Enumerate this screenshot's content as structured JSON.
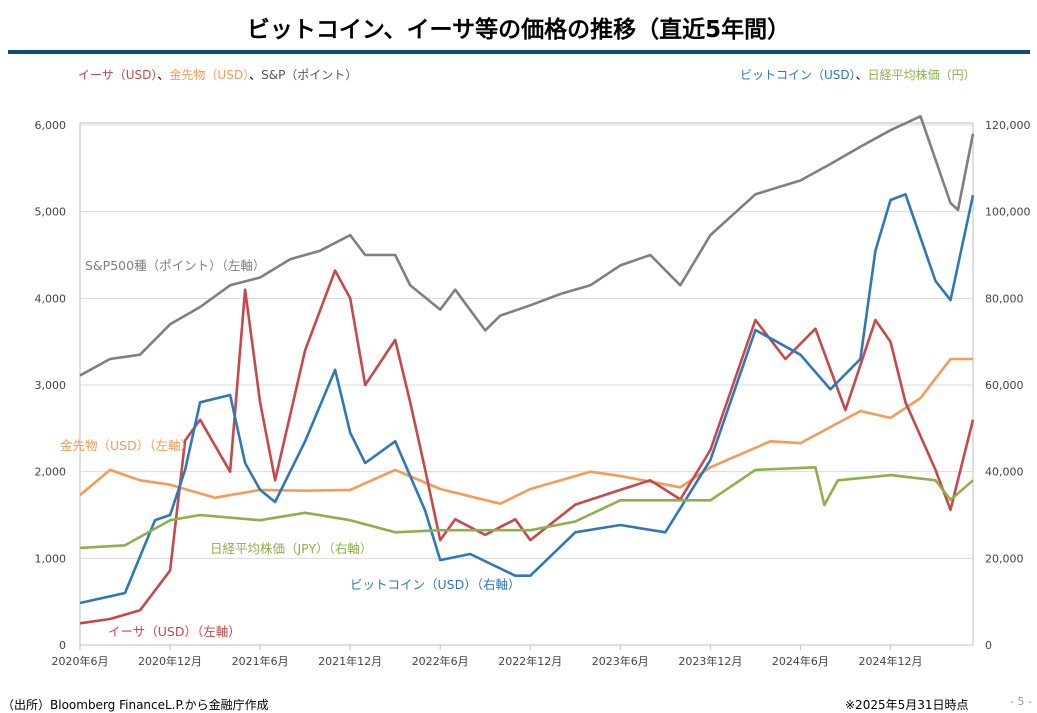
{
  "title": "ビットコイン、イーサ等の価格の推移（直近5年間）",
  "legend_left": [
    {
      "text": "イーサ（USD）",
      "color": "#c8474b"
    },
    {
      "text": "、",
      "color": "#000000"
    },
    {
      "text": "金先物（USD）",
      "color": "#f79a57"
    },
    {
      "text": "、",
      "color": "#000000"
    },
    {
      "text": "S&P（ポイント）",
      "color": "#555555"
    }
  ],
  "legend_right": [
    {
      "text": "ビットコイン（USD）",
      "color": "#2e78b8"
    },
    {
      "text": "、",
      "color": "#000000"
    },
    {
      "text": "日経平均株価（円）",
      "color": "#8db04a"
    }
  ],
  "source": "（出所）Bloomberg FinanceL.P.から金融庁作成",
  "as_of": "※2025年5月31日時点",
  "page": "- 5 -",
  "chart_data": {
    "type": "line",
    "x_unit": "months since 2020-06",
    "xlim": [
      0,
      59.5
    ],
    "x_ticks": [
      {
        "m": 0,
        "label": "2020年6月"
      },
      {
        "m": 6,
        "label": "2020年12月"
      },
      {
        "m": 12,
        "label": "2021年6月"
      },
      {
        "m": 18,
        "label": "2021年12月"
      },
      {
        "m": 24,
        "label": "2022年6月"
      },
      {
        "m": 30,
        "label": "2022年12月"
      },
      {
        "m": 36,
        "label": "2023年6月"
      },
      {
        "m": 42,
        "label": "2023年12月"
      },
      {
        "m": 48,
        "label": "2024年6月"
      },
      {
        "m": 54,
        "label": "2024年12月"
      }
    ],
    "ylim_left": [
      0,
      6000
    ],
    "ylim_right": [
      0,
      120000
    ],
    "y_ticks_left": [
      "0",
      "1,000",
      "2,000",
      "3,000",
      "4,000",
      "5,000",
      "6,000"
    ],
    "y_ticks_right": [
      "0",
      "20,000",
      "40,000",
      "60,000",
      "80,000",
      "100,000",
      "120,000"
    ],
    "grid": true,
    "series": [
      {
        "name": "S&P500種（ポイント）（左軸）",
        "axis": "left",
        "color": "#7f7f7f",
        "points": [
          [
            0,
            3110
          ],
          [
            2,
            3300
          ],
          [
            4,
            3350
          ],
          [
            6,
            3700
          ],
          [
            8,
            3900
          ],
          [
            10,
            4150
          ],
          [
            12,
            4240
          ],
          [
            14,
            4450
          ],
          [
            16,
            4550
          ],
          [
            18,
            4730
          ],
          [
            19,
            4500
          ],
          [
            21,
            4500
          ],
          [
            22,
            4150
          ],
          [
            24,
            3870
          ],
          [
            25,
            4100
          ],
          [
            27,
            3630
          ],
          [
            28,
            3800
          ],
          [
            30,
            3920
          ],
          [
            32,
            4050
          ],
          [
            34,
            4150
          ],
          [
            36,
            4380
          ],
          [
            38,
            4500
          ],
          [
            40,
            4150
          ],
          [
            42,
            4730
          ],
          [
            45,
            5200
          ],
          [
            48,
            5360
          ],
          [
            50,
            5550
          ],
          [
            52,
            5750
          ],
          [
            54,
            5940
          ],
          [
            56,
            6100
          ],
          [
            58,
            5100
          ],
          [
            58.5,
            5020
          ],
          [
            59.5,
            5900
          ]
        ]
      },
      {
        "name": "金先物（USD）（左軸）",
        "axis": "left",
        "color": "#f79a57",
        "points": [
          [
            0,
            1730
          ],
          [
            2,
            2020
          ],
          [
            4,
            1900
          ],
          [
            6,
            1850
          ],
          [
            9,
            1700
          ],
          [
            12,
            1790
          ],
          [
            15,
            1780
          ],
          [
            18,
            1790
          ],
          [
            21,
            2020
          ],
          [
            24,
            1800
          ],
          [
            28,
            1630
          ],
          [
            30,
            1800
          ],
          [
            34,
            2000
          ],
          [
            36,
            1950
          ],
          [
            40,
            1820
          ],
          [
            42,
            2050
          ],
          [
            46,
            2350
          ],
          [
            48,
            2330
          ],
          [
            52,
            2700
          ],
          [
            54,
            2620
          ],
          [
            56,
            2850
          ],
          [
            58,
            3300
          ],
          [
            59.5,
            3300
          ]
        ]
      },
      {
        "name": "イーサ（USD）（左軸）",
        "axis": "left",
        "color": "#c8474b",
        "points": [
          [
            0,
            250
          ],
          [
            2,
            300
          ],
          [
            4,
            400
          ],
          [
            6,
            860
          ],
          [
            7,
            2360
          ],
          [
            8,
            2600
          ],
          [
            10,
            2000
          ],
          [
            11,
            4100
          ],
          [
            12,
            2800
          ],
          [
            13,
            1900
          ],
          [
            15,
            3400
          ],
          [
            17,
            4320
          ],
          [
            18,
            4000
          ],
          [
            19,
            3000
          ],
          [
            21,
            3520
          ],
          [
            22,
            2800
          ],
          [
            23,
            2020
          ],
          [
            24,
            1210
          ],
          [
            25,
            1450
          ],
          [
            27,
            1270
          ],
          [
            29,
            1450
          ],
          [
            30,
            1210
          ],
          [
            33,
            1620
          ],
          [
            36,
            1790
          ],
          [
            38,
            1900
          ],
          [
            40,
            1680
          ],
          [
            42,
            2250
          ],
          [
            45,
            3750
          ],
          [
            47,
            3300
          ],
          [
            49,
            3650
          ],
          [
            51,
            2710
          ],
          [
            53,
            3750
          ],
          [
            54,
            3500
          ],
          [
            55,
            2800
          ],
          [
            57,
            2020
          ],
          [
            58,
            1560
          ],
          [
            59.5,
            2600
          ]
        ]
      },
      {
        "name": "ビットコイン（USD）（右軸）",
        "axis": "right",
        "color": "#2e78b8",
        "points": [
          [
            0,
            9700
          ],
          [
            3,
            12000
          ],
          [
            5,
            28800
          ],
          [
            6,
            30000
          ],
          [
            7,
            40400
          ],
          [
            8,
            56000
          ],
          [
            10,
            57700
          ],
          [
            11,
            42000
          ],
          [
            12,
            35800
          ],
          [
            13,
            33000
          ],
          [
            15,
            47000
          ],
          [
            17,
            63500
          ],
          [
            18,
            49000
          ],
          [
            19,
            42000
          ],
          [
            21,
            47000
          ],
          [
            23,
            31000
          ],
          [
            24,
            19600
          ],
          [
            26,
            21000
          ],
          [
            29,
            16000
          ],
          [
            30,
            16000
          ],
          [
            33,
            26000
          ],
          [
            36,
            27700
          ],
          [
            39,
            26000
          ],
          [
            42,
            42700
          ],
          [
            45,
            72700
          ],
          [
            48,
            67000
          ],
          [
            50,
            59000
          ],
          [
            52,
            66000
          ],
          [
            53,
            91000
          ],
          [
            54,
            102700
          ],
          [
            55,
            104000
          ],
          [
            57,
            84000
          ],
          [
            58,
            79600
          ],
          [
            59.5,
            103800
          ]
        ]
      },
      {
        "name": "日経平均株価（JPY）（右軸）",
        "axis": "right",
        "color": "#8db04a",
        "points": [
          [
            0,
            22400
          ],
          [
            3,
            23000
          ],
          [
            6,
            28800
          ],
          [
            8,
            30000
          ],
          [
            12,
            28800
          ],
          [
            15,
            30500
          ],
          [
            18,
            28800
          ],
          [
            21,
            26000
          ],
          [
            24,
            26500
          ],
          [
            30,
            26500
          ],
          [
            33,
            28500
          ],
          [
            36,
            33400
          ],
          [
            42,
            33400
          ],
          [
            45,
            40400
          ],
          [
            49,
            41000
          ],
          [
            49.6,
            32300
          ],
          [
            50.5,
            38000
          ],
          [
            54,
            39200
          ],
          [
            57,
            38000
          ],
          [
            58,
            33500
          ],
          [
            59.5,
            38000
          ]
        ]
      }
    ],
    "annotations": [
      {
        "text": "S&P500種（ポイント）（左軸）",
        "color": "#7f7f7f"
      },
      {
        "text": "金先物（USD）（左軸）",
        "color": "#f79a57"
      },
      {
        "text": "日経平均株価（JPY）（右軸）",
        "color": "#8db04a"
      },
      {
        "text": "ビットコイン（USD）（右軸）",
        "color": "#2e78b8"
      },
      {
        "text": "イーサ（USD）（左軸）",
        "color": "#c8474b"
      }
    ]
  }
}
